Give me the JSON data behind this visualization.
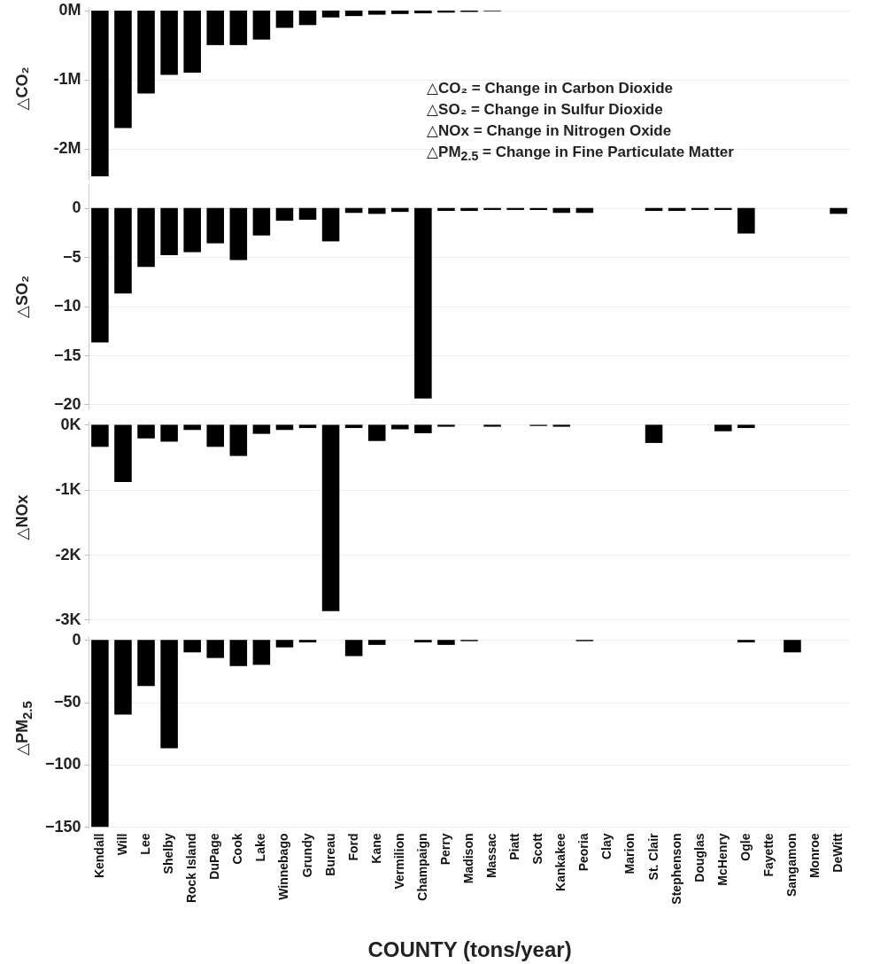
{
  "chart_data": [
    {
      "type": "bar",
      "ylabel": "△CO₂",
      "tick_labels": "y",
      "grid": "y",
      "categories": [
        null,
        null,
        null,
        null,
        null,
        null,
        null,
        null,
        null,
        null,
        null,
        null,
        null,
        null,
        null,
        null,
        null,
        null,
        null,
        null,
        null,
        null,
        null,
        null,
        null,
        null,
        null,
        null,
        null,
        null,
        null,
        null,
        null
      ],
      "values": [
        -2400000,
        -1700000,
        -1200000,
        -930000,
        -900000,
        -500000,
        -500000,
        -420000,
        -250000,
        -210000,
        -100000,
        -80000,
        -60000,
        -50000,
        -40000,
        -30000,
        -20000,
        -10000,
        null,
        null,
        null,
        null,
        null,
        null,
        null,
        null,
        null,
        null,
        null,
        null,
        null,
        null,
        null
      ],
      "color": "#000000",
      "ylim": [
        -2450000,
        50000
      ],
      "yticks": [
        {
          "value": 0,
          "label": "0M"
        },
        {
          "value": -1000000,
          "label": "-1M"
        },
        {
          "value": -2000000,
          "label": "-2M"
        }
      ],
      "annotations": [
        "△CO₂ = Change in Carbon Dioxide",
        "△SO₂ = Change in Sulfur Dioxide",
        "△NOx = Change in Nitrogen Oxide",
        "△PM$_{2.5}$ = Change in Fine Particulate Matter"
      ]
    },
    {
      "type": "bar",
      "ylabel": "△SO₂",
      "tick_labels": "y",
      "grid": "y",
      "categories": [
        null,
        null,
        null,
        null,
        null,
        null,
        null,
        null,
        null,
        null,
        null,
        null,
        null,
        null,
        null,
        null,
        null,
        null,
        null,
        null,
        null,
        null,
        null,
        null,
        null,
        null,
        null,
        null,
        null,
        null,
        null,
        null,
        null
      ],
      "values": [
        -13.7,
        -8.7,
        -6.0,
        -4.8,
        -4.5,
        -3.6,
        -5.3,
        -2.8,
        -1.3,
        -1.2,
        -3.4,
        -0.5,
        -0.6,
        -0.4,
        -19.4,
        -0.3,
        -0.3,
        -0.2,
        -0.2,
        -0.2,
        -0.5,
        -0.5,
        null,
        null,
        -0.3,
        -0.3,
        -0.2,
        -0.2,
        -2.6,
        null,
        null,
        null,
        -0.6
      ],
      "color": "#000000",
      "ylim": [
        -20.5,
        2.5
      ],
      "yticks": [
        0,
        -5,
        -10,
        -15,
        -20
      ]
    },
    {
      "type": "bar",
      "ylabel": "△NOx",
      "tick_labels": "y",
      "grid": "y",
      "categories": [
        null,
        null,
        null,
        null,
        null,
        null,
        null,
        null,
        null,
        null,
        null,
        null,
        null,
        null,
        null,
        null,
        null,
        null,
        null,
        null,
        null,
        null,
        null,
        null,
        null,
        null,
        null,
        null,
        null,
        null,
        null,
        null,
        null
      ],
      "values": [
        -340,
        -880,
        -210,
        -260,
        -80,
        -340,
        -480,
        -140,
        -80,
        -50,
        -2870,
        -50,
        -250,
        -70,
        -130,
        -30,
        null,
        -30,
        null,
        -20,
        -30,
        null,
        null,
        null,
        -280,
        null,
        null,
        -100,
        -50,
        null,
        null,
        null,
        null
      ],
      "color": "#000000",
      "ylim": [
        -3050,
        60
      ],
      "yticks": [
        {
          "value": 0,
          "label": "0K"
        },
        {
          "value": -1000,
          "label": "-1K"
        },
        {
          "value": -2000,
          "label": "-2K"
        },
        {
          "value": -3000,
          "label": "-3K"
        }
      ]
    },
    {
      "type": "bar",
      "ylabel": "△PM$_{2.5}$",
      "xlabel": "COUNTY (tons/year)",
      "grid": "y",
      "categories": [
        "Kendall",
        "Will",
        "Lee",
        "Shelby",
        "Rock Island",
        "DuPage",
        "Cook",
        "Lake",
        "Winnebago",
        "Grundy",
        "Bureau",
        "Ford",
        "Kane",
        "Vermilion",
        "Champaign",
        "Perry",
        "Madison",
        "Massac",
        "Piatt",
        "Scott",
        "Kankakee",
        "Peoria",
        "Clay",
        "Marion",
        "St. Clair",
        "Stephenson",
        "Douglas",
        "McHenry",
        "Ogle",
        "Fayette",
        "Sangamon",
        "Monroe",
        "DeWitt"
      ],
      "values": [
        -150,
        -60,
        -37,
        -87,
        -10,
        -14.5,
        -21,
        -20,
        -6,
        -2,
        null,
        -13,
        -4,
        null,
        -2,
        -4,
        -1,
        null,
        null,
        null,
        null,
        -1,
        null,
        null,
        null,
        null,
        null,
        null,
        -2,
        null,
        -10,
        null,
        null
      ],
      "color": "#000000",
      "ylim": [
        -152,
        3
      ],
      "yticks": [
        0,
        -50,
        -100,
        -150
      ]
    }
  ]
}
